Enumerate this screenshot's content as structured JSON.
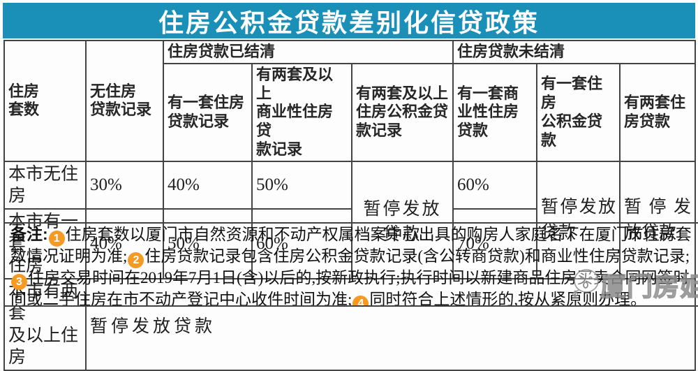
{
  "title": "住房公积金贷款差别化信贷政策",
  "colors": {
    "title_bar_teal": "#1a90b8",
    "note_badge_orange": "#f59a23",
    "table_border": "#434343"
  },
  "table": {
    "headers": {
      "housing_count": "住房\n套数",
      "no_loan_record": "无住房\n贷款记录",
      "settled_group": "住房贷款已结清",
      "unsettled_group": "住房贷款未结清",
      "settled_one_record": "有一套住房\n贷款记录",
      "settled_two_commercial_record": "有两套及以上\n商业性住房贷\n款记录",
      "settled_two_fund_record": "有两套及以上\n住房公积金贷\n款记录",
      "unsettled_one_commercial": "有一套商业性住房贷款",
      "unsettled_one_fund": "有一套住房\n公积金贷款",
      "unsettled_two_loans": "有两套住房贷款"
    },
    "rows": {
      "no_housing": {
        "label": "本市无住房",
        "no_record": "30%",
        "settled_one": "40%",
        "settled_two_commercial": "50%",
        "unsettled_one_commercial": "60%"
      },
      "one_housing": {
        "label": "本市有一套\n住房",
        "no_record": "40%",
        "settled_one": "50%",
        "settled_two_commercial": "60%",
        "unsettled_one_commercial": "70%"
      },
      "two_housing": {
        "label": "本市有两套\n及以上住房",
        "value": "暂停发放贷款"
      }
    },
    "suspended": {
      "settled_two_fund": "暂停发放贷款",
      "unsettled_one_fund": "暂停发放贷款",
      "unsettled_two": "暂停发放贷款"
    }
  },
  "notes": {
    "segments": [
      {
        "type": "label",
        "text": "备注:"
      },
      {
        "type": "badge",
        "text": "1"
      },
      {
        "type": "text",
        "text": "住房套数以厦门市自然资源和不动产权属档案中心出具的购房人家庭名下在厦门市住房套数情况证明为准;"
      },
      {
        "type": "badge",
        "text": "2"
      },
      {
        "type": "text",
        "text": "住房贷款记录包含住房公积金贷款记录(含公转商贷款)和商业性住房贷款记录;"
      },
      {
        "type": "badge",
        "text": "3"
      },
      {
        "type": "text",
        "text": "住房交易时间在2019年7月1日(含)以后的,按新政执行;执行时间以新建商品住房买卖合同网签时间或二手住房在市不动产登记中心收件时间为准;"
      },
      {
        "type": "badge",
        "text": "4"
      },
      {
        "type": "text",
        "text": "同时符合上述情形的,按从紧原则办理。"
      }
    ]
  },
  "watermark": {
    "text": "厦门房姐",
    "icon": "chat-bubble-face-icon"
  }
}
